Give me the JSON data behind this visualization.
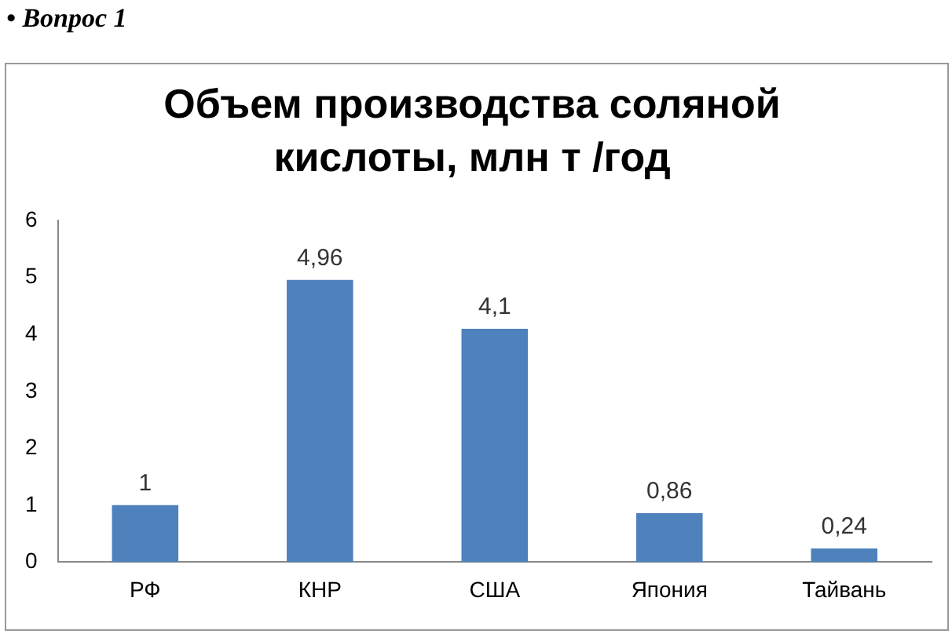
{
  "chart_data": {
    "type": "bar",
    "title": "Объем производства соляной кислоты, млн т /год",
    "annotations": [
      "• Вопрос 1"
    ],
    "categories": [
      "РФ",
      "КНР",
      "США",
      "Япония",
      "Тайвань"
    ],
    "values": [
      1,
      4.96,
      4.1,
      0.86,
      0.24
    ],
    "value_labels": [
      "1",
      "4,96",
      "4,1",
      "0,86",
      "0,24"
    ],
    "color": "#4f81bd",
    "ylim": [
      0,
      6
    ],
    "yticks": [
      0,
      1,
      2,
      3,
      4,
      5,
      6
    ],
    "grid": false,
    "legend": false
  }
}
